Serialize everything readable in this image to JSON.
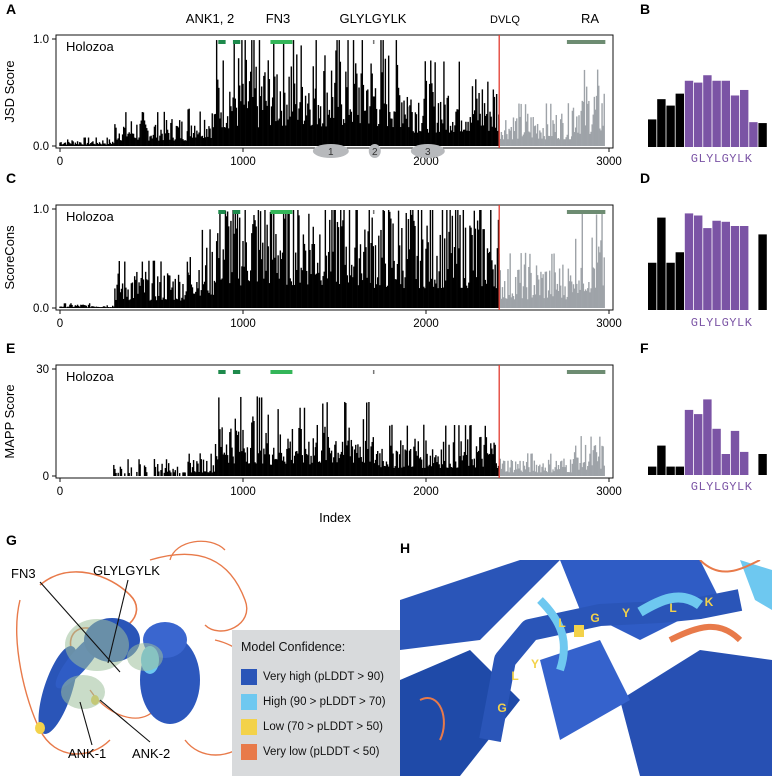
{
  "colors": {
    "conserved": "#000000",
    "downstream": "#9ea3a8",
    "motif": "#7b54a5",
    "divider": "#e23a2e",
    "ank": "#1e8a4c",
    "fn3": "#34b659",
    "ra": "#6d8c72",
    "very_high": "#2a55b8",
    "high": "#6ec8f0",
    "low": "#f3d24a",
    "very_low": "#e87a4a",
    "legend_bg": "#d8dadc"
  },
  "panel_letters": [
    "A",
    "B",
    "C",
    "D",
    "E",
    "F",
    "G",
    "H"
  ],
  "domain_labels": {
    "ank": "ANK1, 2",
    "fn3": "FN3",
    "glyl": "GLYLGYLK",
    "dvlq": "DVLQ",
    "ra": "RA"
  },
  "clade": "Holozoa",
  "x_axis_label": "Index",
  "chart_data": [
    {
      "panel": "A",
      "type": "bar",
      "ylabel": "JSD Score",
      "xlim": [
        0,
        3000
      ],
      "ylim": [
        0,
        1.0
      ],
      "xticks": [
        0,
        1000,
        2000,
        3000
      ],
      "yticks": [
        "0.0",
        "1.0"
      ],
      "divider_index": 2400,
      "annotations": [
        "1",
        "2",
        "3"
      ],
      "segments": [
        {
          "from": 0,
          "to": 300,
          "level": 0.05
        },
        {
          "from": 300,
          "to": 700,
          "level": 0.2
        },
        {
          "from": 700,
          "to": 850,
          "level": 0.3
        },
        {
          "from": 850,
          "to": 1150,
          "level": 0.65
        },
        {
          "from": 1150,
          "to": 1400,
          "level": 0.75
        },
        {
          "from": 1400,
          "to": 1700,
          "level": 0.72
        },
        {
          "from": 1700,
          "to": 1900,
          "level": 0.68
        },
        {
          "from": 1900,
          "to": 2400,
          "level": 0.5
        },
        {
          "from": 2400,
          "to": 2800,
          "level": 0.25
        },
        {
          "from": 2800,
          "to": 2980,
          "level": 0.45
        }
      ]
    },
    {
      "panel": "C",
      "type": "bar",
      "ylabel": "ScoreCons",
      "xlim": [
        0,
        3000
      ],
      "ylim": [
        0,
        1.0
      ],
      "xticks": [
        0,
        1000,
        2000,
        3000
      ],
      "yticks": [
        "0.0",
        "1.0"
      ],
      "divider_index": 2400,
      "segments": [
        {
          "from": 0,
          "to": 300,
          "level": 0.03
        },
        {
          "from": 300,
          "to": 700,
          "level": 0.3
        },
        {
          "from": 700,
          "to": 850,
          "level": 0.5
        },
        {
          "from": 850,
          "to": 1150,
          "level": 0.9
        },
        {
          "from": 1150,
          "to": 1700,
          "level": 0.92
        },
        {
          "from": 1700,
          "to": 2400,
          "level": 0.8
        },
        {
          "from": 2400,
          "to": 2800,
          "level": 0.35
        },
        {
          "from": 2800,
          "to": 2980,
          "level": 0.6
        }
      ]
    },
    {
      "panel": "E",
      "type": "bar",
      "ylabel": "MAPP Score",
      "xlim": [
        0,
        3000
      ],
      "ylim": [
        0,
        30
      ],
      "xticks": [
        0,
        1000,
        2000,
        3000
      ],
      "yticks": [
        "0",
        "30"
      ],
      "divider_index": 2400,
      "segments": [
        {
          "from": 270,
          "to": 700,
          "level": 3
        },
        {
          "from": 700,
          "to": 850,
          "level": 4
        },
        {
          "from": 850,
          "to": 1150,
          "level": 14
        },
        {
          "from": 1150,
          "to": 1400,
          "level": 12
        },
        {
          "from": 1400,
          "to": 1700,
          "level": 13
        },
        {
          "from": 1700,
          "to": 2400,
          "level": 9
        },
        {
          "from": 2400,
          "to": 2800,
          "level": 4
        },
        {
          "from": 2800,
          "to": 2980,
          "level": 7
        }
      ]
    },
    {
      "panel": "B",
      "type": "bar",
      "motif": "GLYLGYLK",
      "values": [
        0.3,
        0.52,
        0.45,
        0.58,
        0.72,
        0.7,
        0.78,
        0.72,
        0.72,
        0.56,
        0.62,
        0.27,
        0.26
      ],
      "motif_range": [
        4,
        11
      ]
    },
    {
      "panel": "D",
      "type": "bar",
      "motif": "GLYLGYLK",
      "values": [
        0.45,
        0.88,
        0.45,
        0.55,
        0.92,
        0.9,
        0.78,
        0.85,
        0.84,
        0.8,
        0.8,
        0.0,
        0.72
      ],
      "motif_range": [
        4,
        11
      ]
    },
    {
      "panel": "F",
      "type": "bar",
      "motif": "GLYLGYLK",
      "values": [
        0.08,
        0.28,
        0.08,
        0.08,
        0.62,
        0.58,
        0.72,
        0.44,
        0.2,
        0.42,
        0.22,
        0.0,
        0.2
      ],
      "motif_range": [
        4,
        11
      ]
    }
  ],
  "panel_g": {
    "labels": {
      "fn3": "FN3",
      "glyl": "GLYLGYLK",
      "ank1": "ANK-1",
      "ank2": "ANK-2"
    }
  },
  "legend": {
    "title": "Model Confidence:",
    "items": [
      {
        "label": "Very high (pLDDT > 90)",
        "color": "#2a55b8"
      },
      {
        "label": "High (90 > pLDDT > 70)",
        "color": "#6ec8f0"
      },
      {
        "label": "Low (70 > pLDDT > 50)",
        "color": "#f3d24a"
      },
      {
        "label": "Very low (pLDDT < 50)",
        "color": "#e87a4a"
      }
    ]
  },
  "panel_h": {
    "residues": [
      "G",
      "L",
      "Y",
      "L",
      "G",
      "Y",
      "L",
      "K"
    ]
  }
}
